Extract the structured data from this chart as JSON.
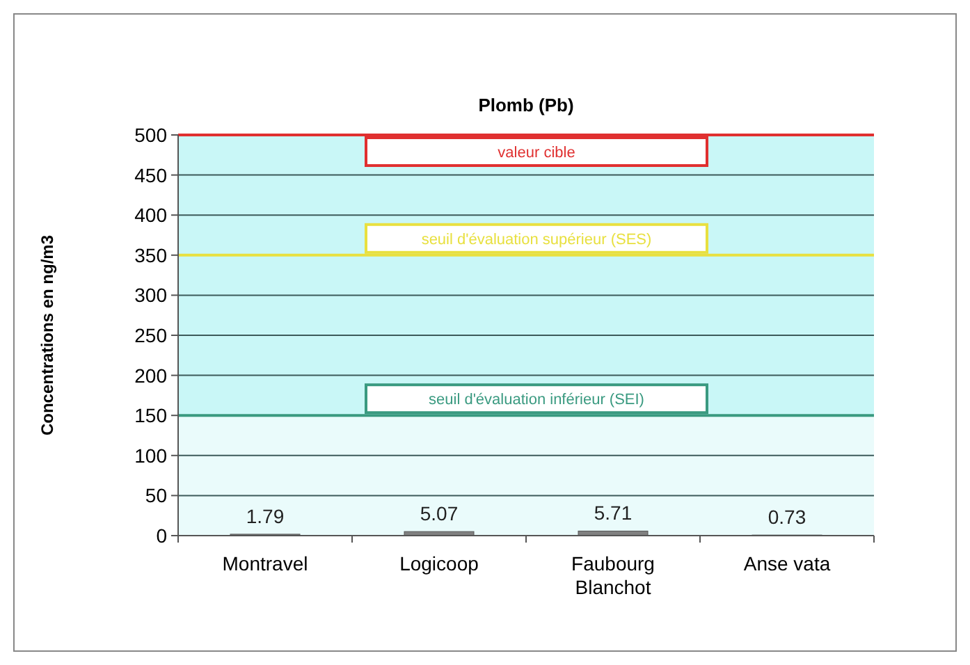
{
  "chart_data": {
    "type": "bar",
    "title": "Plomb (Pb)",
    "ylabel": "Concentrations en ng/m3",
    "categories": [
      "Montravel",
      "Logicoop",
      "Faubourg Blanchot",
      "Anse vata"
    ],
    "values": [
      1.79,
      5.07,
      5.71,
      0.73
    ],
    "color": "#808080",
    "data_labels": true,
    "ylim": [
      0,
      500
    ],
    "yticks": [
      0,
      50,
      100,
      150,
      200,
      250,
      300,
      350,
      400,
      450,
      500
    ],
    "grid": "y",
    "bands": [
      {
        "axis": "y",
        "from": 150,
        "to": 500,
        "color": "#c9f7f7"
      }
    ],
    "ref_lines": [
      {
        "axis": "y",
        "value": 500,
        "label": "valeur cible",
        "color": "#e03030"
      },
      {
        "axis": "y",
        "value": 350,
        "label": "seuil d'évaluation supérieur (SES)",
        "color": "#e8e040"
      },
      {
        "axis": "y",
        "value": 150,
        "label": "seuil d'évaluation inférieur (SEI)",
        "color": "#3a9a80"
      }
    ]
  }
}
